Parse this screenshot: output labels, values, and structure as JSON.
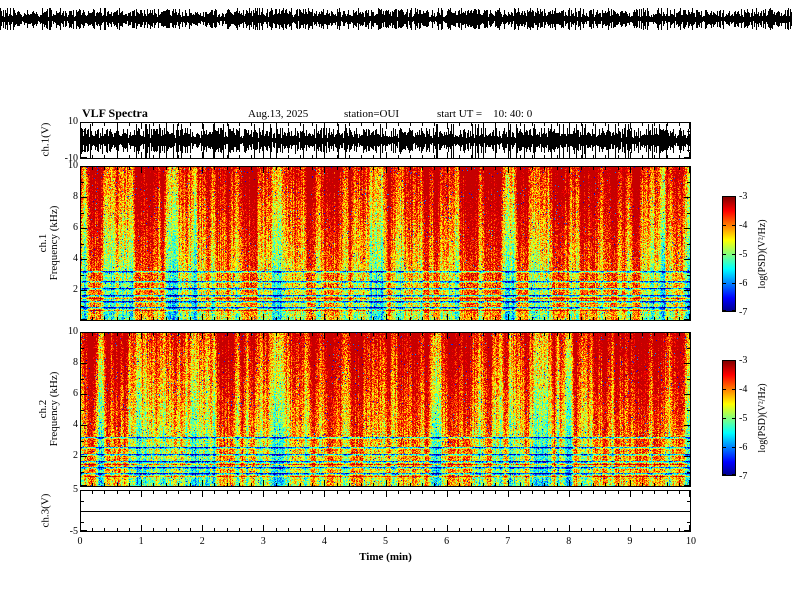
{
  "header": {
    "title": "VLF Spectra",
    "date": "Aug.13, 2025",
    "station": "station=OUI",
    "start_ut": "start UT =    10: 40: 0"
  },
  "axes": {
    "x": {
      "label": "Time (min)",
      "ticks": [
        "0",
        "1",
        "2",
        "3",
        "4",
        "5",
        "6",
        "7",
        "8",
        "9",
        "10"
      ],
      "range_min": [
        0,
        10
      ]
    },
    "panels": [
      {
        "id": "ch1-voltage",
        "ylabel": "ch.1(V)",
        "ylim": [
          -10,
          10
        ],
        "yticks": [
          "10",
          "-10"
        ]
      },
      {
        "id": "ch1-spectrogram",
        "ylabel_line1": "ch.1",
        "ylabel_line2": "Frequency (kHz)",
        "ylim": [
          0,
          10
        ],
        "yticks": [
          "10",
          "8",
          "6",
          "4",
          "2"
        ]
      },
      {
        "id": "ch2-spectrogram",
        "ylabel_line1": "ch.2",
        "ylabel_line2": "Frequency (kHz)",
        "ylim": [
          0,
          10
        ],
        "yticks": [
          "10",
          "8",
          "6",
          "4",
          "2"
        ]
      },
      {
        "id": "ch3-voltage",
        "ylabel": "ch.3(V)",
        "ylim": [
          -5,
          5
        ],
        "yticks": [
          "5",
          "-5"
        ]
      }
    ]
  },
  "colorbar": {
    "label": "log(PSD)(V²/Hz)",
    "ticks": [
      "-3",
      "-4",
      "-5",
      "-6",
      "-7"
    ],
    "value_range": [
      -7,
      -3
    ],
    "colormap": "jet"
  },
  "chart_data": [
    {
      "type": "line",
      "panel": "ch.1(V) waveform",
      "xlim_min": [
        0,
        10
      ],
      "ylim_V": [
        -10,
        10
      ],
      "description": "Dense black broadband noise waveform spanning roughly ±8 V continuously for the full 10 minute record; a similar clipped noise strip is also drawn across the very top of the image"
    },
    {
      "type": "heatmap",
      "panel": "ch.1 spectrogram",
      "xlim_min": [
        0,
        10
      ],
      "ylim_kHz": [
        0,
        10
      ],
      "clim_logPSD": [
        -7,
        -3
      ],
      "colormap": "jet",
      "description": "High power (log PSD near -3, red) above ~4 kHz with many vertical green/yellow interference streaks; moderate power (near -5, green/cyan) below ~4 kHz; narrow dark/blue horizontal interference lines between ~0.9 and 3.2 kHz; scattered dark blue dropouts throughout"
    },
    {
      "type": "heatmap",
      "panel": "ch.2 spectrogram",
      "xlim_min": [
        0,
        10
      ],
      "ylim_kHz": [
        0,
        10
      ],
      "clim_logPSD": [
        -7,
        -3
      ],
      "colormap": "jet",
      "description": "Same structure as ch.1: red high-power band above ~4 kHz with vertical streaking, green/cyan below, dark horizontal interference lines near 1-3 kHz, scattered blue dropouts"
    },
    {
      "type": "line",
      "panel": "ch.3(V)",
      "xlim_min": [
        0,
        10
      ],
      "ylim_V": [
        -5,
        5
      ],
      "description": "Flat constant line at approximately 0 V for the entire record"
    }
  ]
}
